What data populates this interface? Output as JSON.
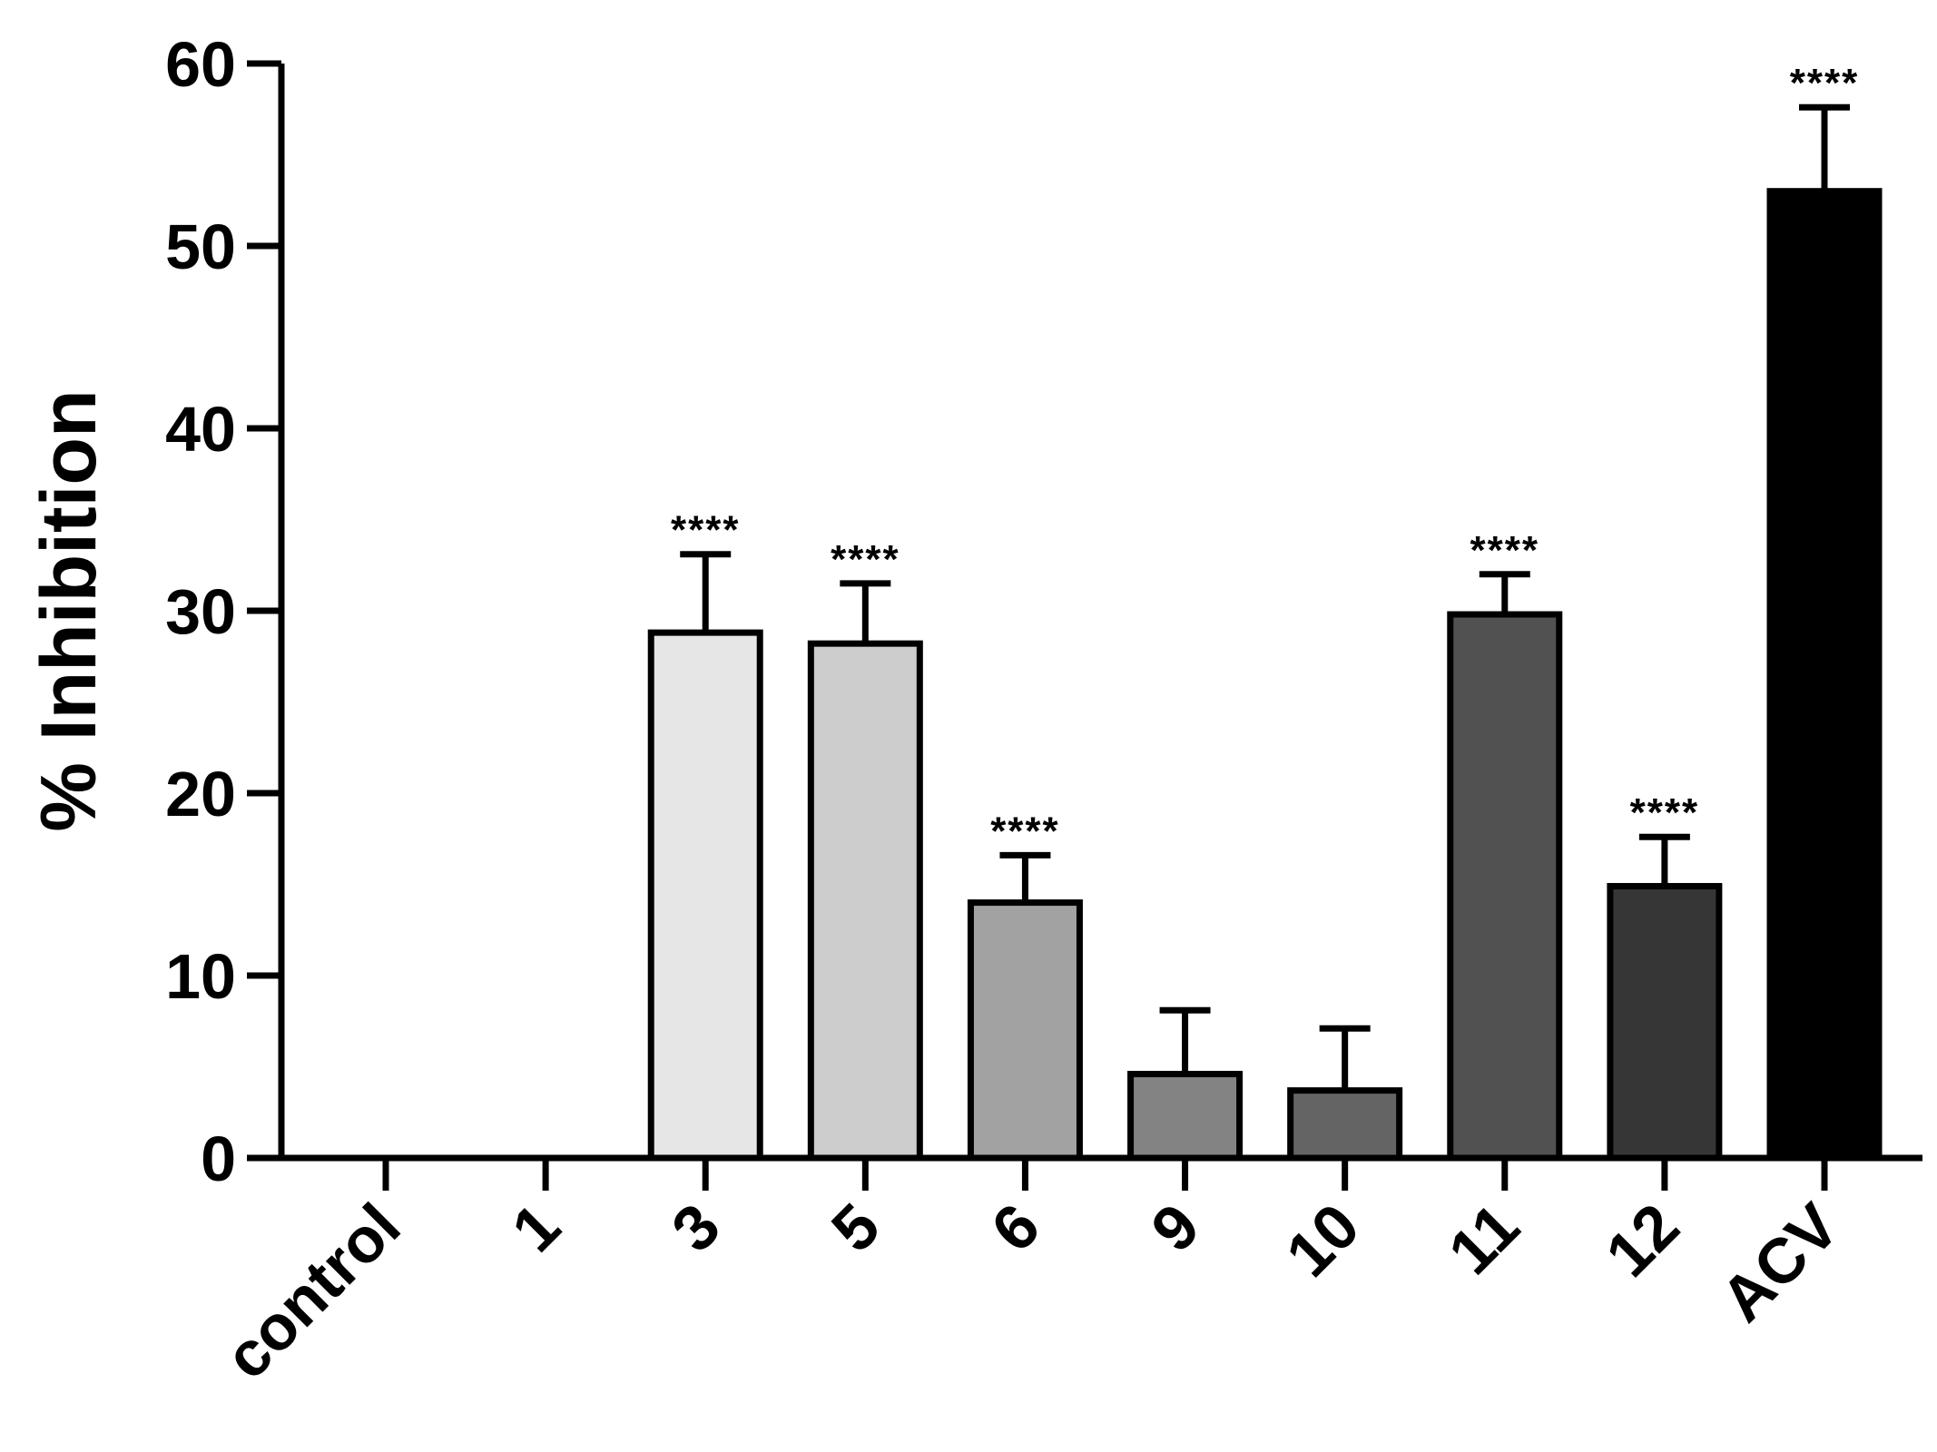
{
  "chart_data": {
    "type": "bar",
    "title": "",
    "xlabel": "",
    "ylabel": "% Inhibition",
    "ylim": [
      0,
      60
    ],
    "yticks": [
      "0",
      "10",
      "20",
      "30",
      "40",
      "50",
      "60"
    ],
    "categories": [
      "control",
      "1",
      "3",
      "5",
      "6",
      "9",
      "10",
      "11",
      "12",
      "ACV"
    ],
    "values": [
      0,
      0,
      28.8,
      28.2,
      14.0,
      4.6,
      3.7,
      29.8,
      14.9,
      53.0
    ],
    "errors": [
      0,
      0,
      4.3,
      3.3,
      2.6,
      3.5,
      3.4,
      2.2,
      2.7,
      4.6
    ],
    "significance": [
      "",
      "",
      "****",
      "****",
      "****",
      "",
      "",
      "****",
      "****",
      "****"
    ],
    "colors": [
      "#ffffff",
      "#ffffff",
      "#e6e6e6",
      "#cdcdcd",
      "#a2a2a2",
      "#838383",
      "#646464",
      "#515151",
      "#363636",
      "#000000"
    ],
    "grid": false,
    "legend": "none"
  }
}
